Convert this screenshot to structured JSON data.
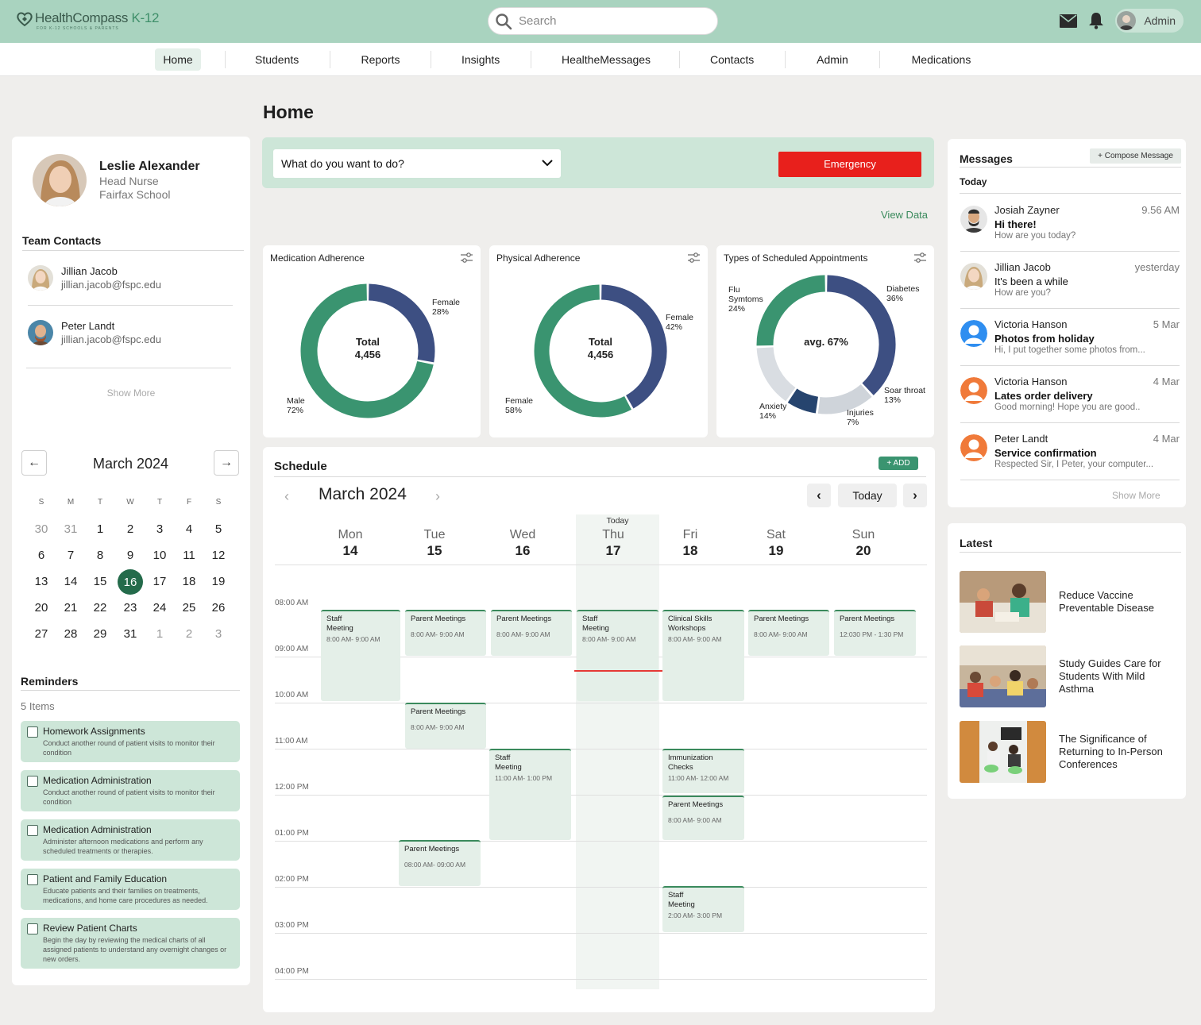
{
  "brand": {
    "name": "HealthCompass",
    "suffix": "K-12",
    "tagline": "FOR K-12 SCHOOLS & PARENTS"
  },
  "search": {
    "placeholder": "Search"
  },
  "user": {
    "role_label": "Admin"
  },
  "nav": {
    "items": [
      "Home",
      "Students",
      "Reports",
      "Insights",
      "HealtheMessages",
      "Contacts",
      "Admin",
      "Medications"
    ],
    "active": "Home"
  },
  "page": {
    "title": "Home"
  },
  "profile": {
    "name": "Leslie Alexander",
    "role": "Head Nurse",
    "school": "Fairfax School"
  },
  "team": {
    "title": "Team Contacts",
    "contacts": [
      {
        "name": "Jillian Jacob",
        "email": "jillian.jacob@fspc.edu"
      },
      {
        "name": "Peter Landt",
        "email": "jillian.jacob@fspc.edu"
      }
    ],
    "show_more": "Show More"
  },
  "mini_calendar": {
    "title": "March 2024",
    "weekdays": [
      "S",
      "M",
      "T",
      "W",
      "T",
      "F",
      "S"
    ],
    "weeks": [
      [
        "30",
        "31",
        "1",
        "2",
        "3",
        "4",
        "5"
      ],
      [
        "6",
        "7",
        "8",
        "9",
        "10",
        "11",
        "12"
      ],
      [
        "13",
        "14",
        "15",
        "16",
        "17",
        "18",
        "19"
      ],
      [
        "20",
        "21",
        "22",
        "23",
        "24",
        "25",
        "26"
      ],
      [
        "27",
        "28",
        "29",
        "31",
        "1",
        "2",
        "3"
      ]
    ],
    "selected": "16"
  },
  "reminders": {
    "title": "Reminders",
    "count_label": "5 Items",
    "items": [
      {
        "title": "Homework Assignments",
        "desc": "Conduct another round of patient visits to monitor their condition"
      },
      {
        "title": "Medication Administration",
        "desc": "Conduct another round of patient visits to monitor their condition"
      },
      {
        "title": "Medication Administration",
        "desc": "Administer afternoon medications and perform any scheduled treatments or therapies."
      },
      {
        "title": "Patient and Family Education",
        "desc": "Educate patients and their families on treatments, medications, and home care procedures as needed."
      },
      {
        "title": "Review Patient Charts",
        "desc": "Begin the day by reviewing the medical charts of all assigned patients to understand any overnight changes or new orders."
      }
    ]
  },
  "actions": {
    "dropdown_label": "What do you want to do?",
    "emergency_label": "Emergency",
    "view_data": "View Data"
  },
  "colors": {
    "green": "#3a9470",
    "navy": "#3d4f82",
    "gray": "#cfd4da",
    "red": "#e8201c",
    "mint": "#a9d3bf"
  },
  "chart_data": [
    {
      "type": "pie",
      "title": "Medication Adherence",
      "center": [
        "Total",
        "4,456"
      ],
      "slices": [
        {
          "label": "Female",
          "value": 28,
          "text": "28%",
          "color": "#3d4f82"
        },
        {
          "label": "Male",
          "value": 72,
          "text": "72%",
          "color": "#3a9470"
        }
      ]
    },
    {
      "type": "pie",
      "title": "Physical Adherence",
      "center": [
        "Total",
        "4,456"
      ],
      "slices": [
        {
          "label": "Female",
          "value": 42,
          "text": "42%",
          "color": "#3d4f82"
        },
        {
          "label": "Female",
          "value": 58,
          "text": "58%",
          "color": "#3a9470"
        }
      ]
    },
    {
      "type": "pie",
      "title": "Types of Scheduled Appointments",
      "center": [
        "avg. 67%"
      ],
      "slices": [
        {
          "label": "Diabetes",
          "value": 36,
          "text": "36%",
          "color": "#3d4f82"
        },
        {
          "label": "Soar throat",
          "value": 13,
          "text": "13%",
          "color": "#cfd4da"
        },
        {
          "label": "Injuries",
          "value": 7,
          "text": "7%",
          "color": "#26446e"
        },
        {
          "label": "Anxiety",
          "value": 14,
          "text": "14%",
          "color": "#d9dde2"
        },
        {
          "label": "Flu Symtoms",
          "value": 24,
          "text": "24%",
          "color": "#3a9470"
        }
      ]
    }
  ],
  "schedule": {
    "title": "Schedule",
    "add_label": "+ ADD",
    "month": "March 2024",
    "today_btn": "Today",
    "today_tag": "Today",
    "days": [
      {
        "name": "Mon",
        "date": "14"
      },
      {
        "name": "Tue",
        "date": "15"
      },
      {
        "name": "Wed",
        "date": "16"
      },
      {
        "name": "Thu",
        "date": "17"
      },
      {
        "name": "Fri",
        "date": "18"
      },
      {
        "name": "Sat",
        "date": "19"
      },
      {
        "name": "Sun",
        "date": "20"
      }
    ],
    "times": [
      "08:00 AM",
      "09:00 AM",
      "10:00 AM",
      "11:00 AM",
      "12:00 PM",
      "01:00 PM",
      "02:00 PM",
      "03:00 PM",
      "04:00 PM"
    ],
    "events": [
      {
        "title": "Staff Meeting",
        "time": "8:00 AM- 9:00 AM"
      },
      {
        "title": "Parent Meetings",
        "time": "8:00 AM- 9:00 AM"
      },
      {
        "title": "Parent Meetings",
        "time": "8:00 AM- 9:00 AM"
      },
      {
        "title": "Staff Meeting",
        "time": "8:00 AM- 9:00 AM"
      },
      {
        "title": "Clinical Skills Workshops",
        "time": "8:00 AM- 9:00 AM"
      },
      {
        "title": "Parent Meetings",
        "time": "8:00 AM- 9:00 AM"
      },
      {
        "title": "Parent Meetings",
        "time": "12:030 PM - 1:30 PM"
      },
      {
        "title": "Parent Meetings",
        "time": "8:00 AM- 9:00 AM"
      },
      {
        "title": "Staff Meeting",
        "time": "11:00 AM- 1:00 PM"
      },
      {
        "title": "Immunization Checks",
        "time": "11:00 AM- 12:00 AM"
      },
      {
        "title": "Parent Meetings",
        "time": "8:00 AM- 9:00 AM"
      },
      {
        "title": "Parent Meetings",
        "time": "08:00 AM- 09:00 AM"
      },
      {
        "title": "Staff Meeting",
        "time": "2:00 AM- 3:00 PM"
      }
    ]
  },
  "messages": {
    "title": "Messages",
    "compose": "+ Compose Message",
    "group": "Today",
    "show_more": "Show More",
    "items": [
      {
        "name": "Josiah Zayner",
        "time": "9.56 AM",
        "subject": "Hi there!",
        "preview": "How are you today?"
      },
      {
        "name": "Jillian Jacob",
        "time": "yesterday",
        "subject": "It's been a while",
        "preview": "How are you?"
      },
      {
        "name": "Victoria Hanson",
        "time": "5 Mar",
        "subject": "Photos from holiday",
        "preview": "Hi, I put together some photos from..."
      },
      {
        "name": "Victoria Hanson",
        "time": "4 Mar",
        "subject": "Lates order delivery",
        "preview": "Good morning! Hope you are good.."
      },
      {
        "name": "Peter Landt",
        "time": "4 Mar",
        "subject": "Service confirmation",
        "preview": "Respected Sir, I Peter, your computer..."
      }
    ]
  },
  "latest": {
    "title": "Latest",
    "items": [
      {
        "title": "Reduce Vaccine Preventable Disease"
      },
      {
        "title": "Study Guides Care for Students With Mild Asthma"
      },
      {
        "title": "The Significance of Returning to In-Person Conferences"
      }
    ]
  }
}
